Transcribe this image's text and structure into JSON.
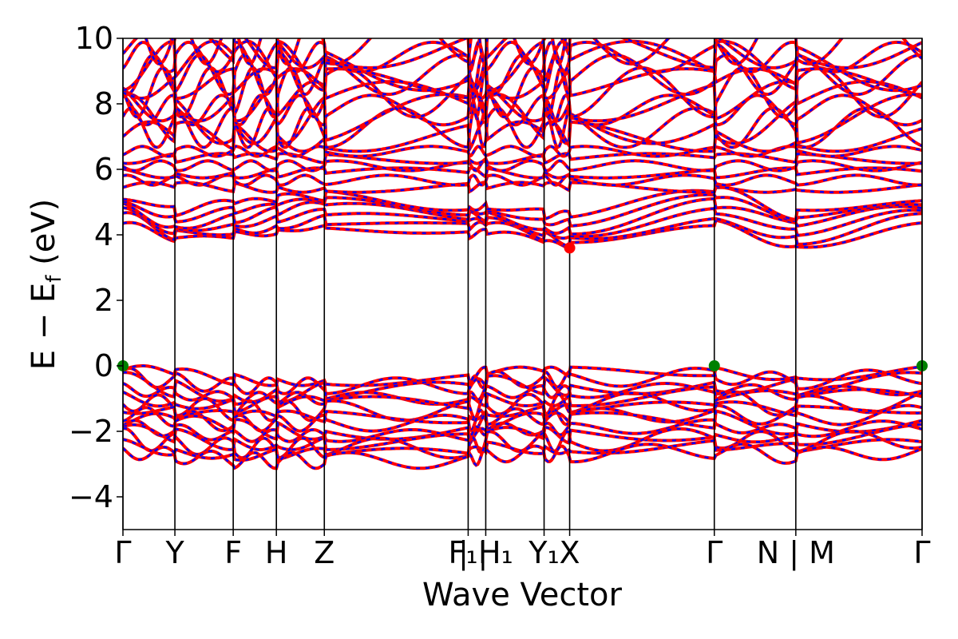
{
  "chart_data": {
    "type": "line",
    "xlabel": "Wave Vector",
    "ylabel": "E − E_f (eV)",
    "ylabel_main": "E − E",
    "ylabel_sub": "f",
    "ylabel_unit": " (eV)",
    "ylim": [
      -5,
      10
    ],
    "yticks": [
      -4,
      -2,
      0,
      2,
      4,
      6,
      8,
      10
    ],
    "xlim": [
      0,
      1
    ],
    "kpoints": [
      {
        "label": "Γ",
        "x": 0.0
      },
      {
        "label": "Y",
        "x": 0.065
      },
      {
        "label": "F",
        "x": 0.138
      },
      {
        "label": "H",
        "x": 0.192
      },
      {
        "label": "Z",
        "x": 0.252
      },
      {
        "label": "F₁|",
        "x": 0.432
      },
      {
        "label": "| H₁",
        "x": 0.454
      },
      {
        "label": "Y₁",
        "x": 0.527
      },
      {
        "label": "X",
        "x": 0.559
      },
      {
        "label": "Γ",
        "x": 0.74
      },
      {
        "label": "N | M",
        "x": 0.842
      },
      {
        "label": "Γ",
        "x": 1.0
      }
    ],
    "band_colors": {
      "solid": "#ff0000",
      "dashed": "#0000ff"
    },
    "conduction_band_edge": [
      {
        "x": 0.0,
        "y": 4.3
      },
      {
        "x": 0.065,
        "y": 3.75
      },
      {
        "x": 0.138,
        "y": 3.95
      },
      {
        "x": 0.252,
        "y": 4.25
      },
      {
        "x": 0.432,
        "y": 3.95
      },
      {
        "x": 0.454,
        "y": 4.0
      },
      {
        "x": 0.559,
        "y": 3.6
      },
      {
        "x": 0.74,
        "y": 4.35
      },
      {
        "x": 0.842,
        "y": 3.65
      },
      {
        "x": 1.0,
        "y": 4.25
      }
    ],
    "valence_band_edge": [
      {
        "x": 0.0,
        "y": 0.0
      },
      {
        "x": 0.065,
        "y": -0.15
      },
      {
        "x": 0.138,
        "y": -0.3
      },
      {
        "x": 0.252,
        "y": -0.3
      },
      {
        "x": 0.432,
        "y": -0.3
      },
      {
        "x": 0.454,
        "y": -0.1
      },
      {
        "x": 0.559,
        "y": -0.1
      },
      {
        "x": 0.74,
        "y": 0.0
      },
      {
        "x": 0.842,
        "y": -0.15
      },
      {
        "x": 1.0,
        "y": 0.0
      }
    ],
    "markers": [
      {
        "name": "cbm",
        "x": 0.559,
        "y": 3.6,
        "color": "#ff0000"
      },
      {
        "name": "vbm",
        "x": 0.0,
        "y": 0.0,
        "color": "#008000"
      },
      {
        "name": "vbm",
        "x": 0.74,
        "y": 0.0,
        "color": "#008000"
      },
      {
        "name": "vbm",
        "x": 1.0,
        "y": 0.0,
        "color": "#008000"
      }
    ],
    "grid": false,
    "legend": "none"
  }
}
